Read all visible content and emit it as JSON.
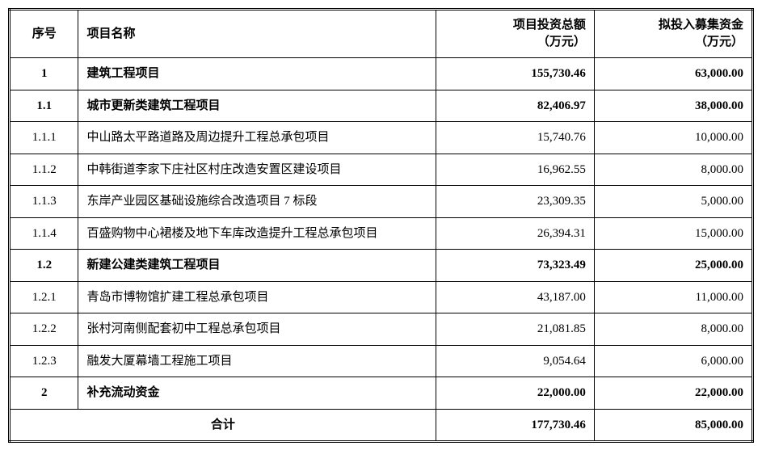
{
  "table": {
    "headers": {
      "seq": "序号",
      "name": "项目名称",
      "amount1_line1": "项目投资总额",
      "amount1_line2": "（万元）",
      "amount2_line1": "拟投入募集资金",
      "amount2_line2": "（万元）"
    },
    "rows": [
      {
        "seq": "1",
        "name": "建筑工程项目",
        "amount1": "155,730.46",
        "amount2": "63,000.00",
        "bold": true
      },
      {
        "seq": "1.1",
        "name": "城市更新类建筑工程项目",
        "amount1": "82,406.97",
        "amount2": "38,000.00",
        "bold": true
      },
      {
        "seq": "1.1.1",
        "name": "中山路太平路道路及周边提升工程总承包项目",
        "amount1": "15,740.76",
        "amount2": "10,000.00",
        "bold": false
      },
      {
        "seq": "1.1.2",
        "name": "中韩街道李家下庄社区村庄改造安置区建设项目",
        "amount1": "16,962.55",
        "amount2": "8,000.00",
        "bold": false
      },
      {
        "seq": "1.1.3",
        "name": "东岸产业园区基础设施综合改造项目 7 标段",
        "amount1": "23,309.35",
        "amount2": "5,000.00",
        "bold": false
      },
      {
        "seq": "1.1.4",
        "name": "百盛购物中心裙楼及地下车库改造提升工程总承包项目",
        "amount1": "26,394.31",
        "amount2": "15,000.00",
        "bold": false
      },
      {
        "seq": "1.2",
        "name": "新建公建类建筑工程项目",
        "amount1": "73,323.49",
        "amount2": "25,000.00",
        "bold": true
      },
      {
        "seq": "1.2.1",
        "name": "青岛市博物馆扩建工程总承包项目",
        "amount1": "43,187.00",
        "amount2": "11,000.00",
        "bold": false
      },
      {
        "seq": "1.2.2",
        "name": "张村河南侧配套初中工程总承包项目",
        "amount1": "21,081.85",
        "amount2": "8,000.00",
        "bold": false
      },
      {
        "seq": "1.2.3",
        "name": "融发大厦幕墙工程施工项目",
        "amount1": "9,054.64",
        "amount2": "6,000.00",
        "bold": false
      },
      {
        "seq": "2",
        "name": "补充流动资金",
        "amount1": "22,000.00",
        "amount2": "22,000.00",
        "bold": true
      }
    ],
    "total": {
      "label": "合计",
      "amount1": "177,730.46",
      "amount2": "85,000.00"
    }
  },
  "style": {
    "background_color": "#ffffff",
    "border_color": "#000000",
    "font_size": 15,
    "bold_weight": "bold",
    "col_widths": {
      "seq": 85,
      "name": 440,
      "amount1": 195,
      "amount2": 195
    }
  }
}
